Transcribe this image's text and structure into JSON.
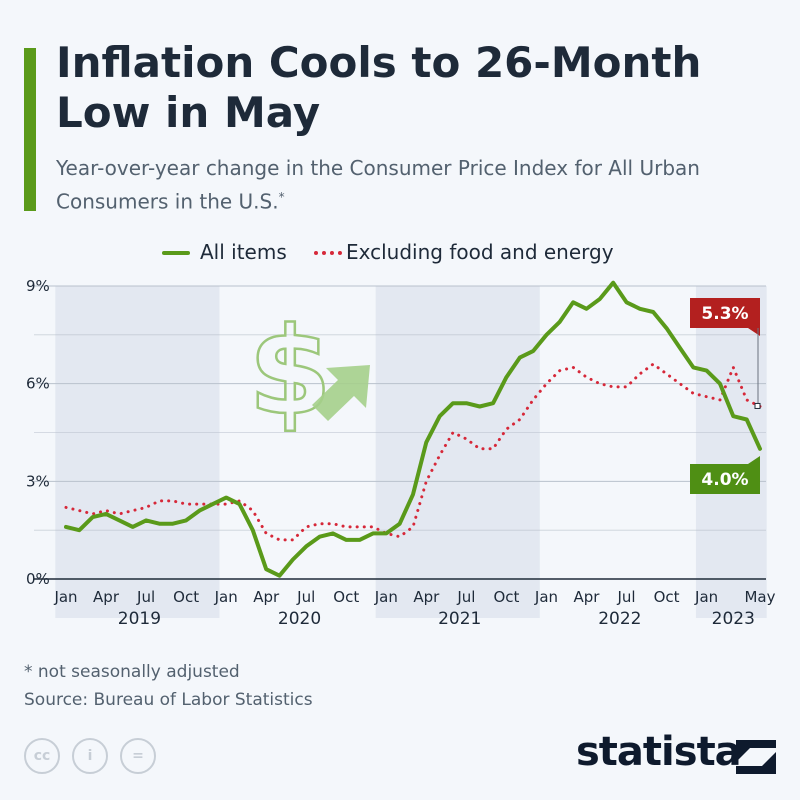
{
  "header": {
    "title": "Inflation Cools to 26-Month Low in May",
    "subtitle": "Year-over-year change in the Consumer Price Index for All Urban Consumers in the U.S.",
    "subtitle_marker": "*"
  },
  "colors": {
    "accent": "#5a9a1a",
    "all_items": "#5a9a1a",
    "core": "#d62839",
    "callout_core": "#b3201f",
    "callout_all": "#4f8f14",
    "band": "#e3e8f1",
    "grid": "#b9c1cc"
  },
  "legend": {
    "placement": "top-center",
    "items": [
      {
        "label": "All items",
        "style": "solid"
      },
      {
        "label": "Excluding food and energy",
        "style": "dotted"
      }
    ]
  },
  "callouts": {
    "core_last": "5.3%",
    "all_last": "4.0%"
  },
  "chart_data": {
    "type": "line",
    "y_tick_labels": [
      "0%",
      "3%",
      "6%",
      "9%"
    ],
    "ylim": [
      0,
      9
    ],
    "y_ticks": [
      0,
      3,
      6,
      9
    ],
    "grid": true,
    "month_tick_labels": [
      {
        "label": "Jan",
        "index": 0
      },
      {
        "label": "Apr",
        "index": 3
      },
      {
        "label": "Jul",
        "index": 6
      },
      {
        "label": "Oct",
        "index": 9
      },
      {
        "label": "Jan",
        "index": 12
      },
      {
        "label": "Apr",
        "index": 15
      },
      {
        "label": "Jul",
        "index": 18
      },
      {
        "label": "Oct",
        "index": 21
      },
      {
        "label": "Jan",
        "index": 24
      },
      {
        "label": "Apr",
        "index": 27
      },
      {
        "label": "Jul",
        "index": 30
      },
      {
        "label": "Oct",
        "index": 33
      },
      {
        "label": "Jan",
        "index": 36
      },
      {
        "label": "Apr",
        "index": 39
      },
      {
        "label": "Jul",
        "index": 42
      },
      {
        "label": "Oct",
        "index": 45
      },
      {
        "label": "Jan",
        "index": 48
      },
      {
        "label": "May",
        "index": 52
      }
    ],
    "years": [
      {
        "label": "2019",
        "start": 0,
        "end": 11
      },
      {
        "label": "2020",
        "start": 12,
        "end": 23
      },
      {
        "label": "2021",
        "start": 24,
        "end": 35
      },
      {
        "label": "2022",
        "start": 36,
        "end": 47
      },
      {
        "label": "2023",
        "start": 48,
        "end": 52
      }
    ],
    "series": [
      {
        "name": "All items",
        "values": [
          1.6,
          1.5,
          1.9,
          2.0,
          1.8,
          1.6,
          1.8,
          1.7,
          1.7,
          1.8,
          2.1,
          2.3,
          2.5,
          2.3,
          1.5,
          0.3,
          0.1,
          0.6,
          1.0,
          1.3,
          1.4,
          1.2,
          1.2,
          1.4,
          1.4,
          1.7,
          2.6,
          4.2,
          5.0,
          5.4,
          5.4,
          5.3,
          5.4,
          6.2,
          6.8,
          7.0,
          7.5,
          7.9,
          8.5,
          8.3,
          8.6,
          9.1,
          8.5,
          8.3,
          8.2,
          7.7,
          7.1,
          6.5,
          6.4,
          6.0,
          5.0,
          4.9,
          4.0
        ]
      },
      {
        "name": "Excluding food and energy",
        "values": [
          2.2,
          2.1,
          2.0,
          2.1,
          2.0,
          2.1,
          2.2,
          2.4,
          2.4,
          2.3,
          2.3,
          2.3,
          2.3,
          2.4,
          2.1,
          1.4,
          1.2,
          1.2,
          1.6,
          1.7,
          1.7,
          1.6,
          1.6,
          1.6,
          1.4,
          1.3,
          1.6,
          3.0,
          3.8,
          4.5,
          4.3,
          4.0,
          4.0,
          4.6,
          4.9,
          5.5,
          6.0,
          6.4,
          6.5,
          6.2,
          6.0,
          5.9,
          5.9,
          6.3,
          6.6,
          6.3,
          6.0,
          5.7,
          5.6,
          5.5,
          6.5,
          5.5,
          5.3
        ]
      }
    ]
  },
  "footnotes": {
    "note_marker": "*",
    "note": "not seasonally adjusted",
    "source": "Source: Bureau of Labor Statistics"
  },
  "license_icons": [
    {
      "icon": "cc-icon",
      "glyph": "cc"
    },
    {
      "icon": "attribution-icon",
      "glyph": "i"
    },
    {
      "icon": "no-derivatives-icon",
      "glyph": "="
    }
  ],
  "brand": {
    "name": "statista"
  }
}
